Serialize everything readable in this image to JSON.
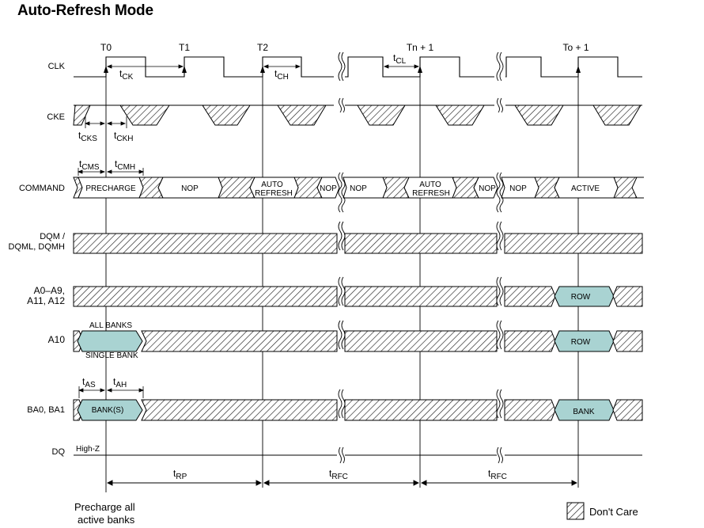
{
  "title": "Auto-Refresh Mode",
  "clock_labels": [
    "T0",
    "T1",
    "T2",
    "Tn + 1",
    "To + 1"
  ],
  "signals": {
    "clk": "CLK",
    "cke": "CKE",
    "command": "COMMAND",
    "dqm_line1": "DQM /",
    "dqm_line2": "DQML, DQMH",
    "addr_line1": "A0–A9,",
    "addr_line2": "A11, A12",
    "a10": "A10",
    "ba": "BA0, BA1",
    "dq": "DQ"
  },
  "commands": [
    "PRECHARGE",
    "NOP",
    "AUTO",
    "REFRESH",
    "NOP",
    "NOP",
    "AUTO",
    "REFRESH",
    "NOP",
    "NOP",
    "ACTIVE"
  ],
  "bus_values": {
    "addr_row": "ROW",
    "a10_row": "ROW",
    "a10_all": "ALL BANKS",
    "a10_single": "SINGLE BANK",
    "ba_banks": "BANK(S)",
    "ba_bank": "BANK",
    "dq_state": "High-Z"
  },
  "timing_params": {
    "tck": "CK",
    "tch": "CH",
    "tcl": "CL",
    "tcks": "CKS",
    "tckh": "CKH",
    "tcms": "CMS",
    "tcmh": "CMH",
    "tas": "AS",
    "tah": "AH",
    "trp": "RP",
    "trfc1": "RFC",
    "trfc2": "RFC",
    "t_prefix": "t"
  },
  "footnote_line1": "Precharge all",
  "footnote_line2": "active banks",
  "legend_label": "Don't Care"
}
